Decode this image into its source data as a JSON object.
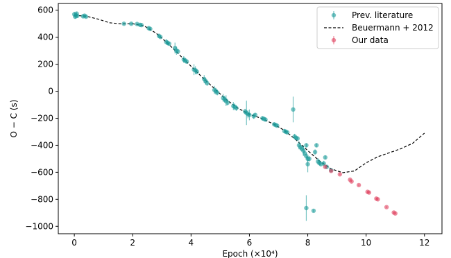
{
  "chart_data": {
    "type": "scatter",
    "xlabel": "Epoch (×10⁴)",
    "ylabel": "O − C (s)",
    "xlim": [
      -0.55,
      12.6
    ],
    "ylim": [
      -1055,
      650
    ],
    "x_ticks": [
      0,
      2,
      4,
      6,
      8,
      10,
      12
    ],
    "x_tick_labels": [
      "0",
      "2",
      "4",
      "6",
      "8",
      "10",
      "12"
    ],
    "y_ticks": [
      600,
      400,
      200,
      0,
      -200,
      -400,
      -600,
      -800,
      -1000
    ],
    "y_tick_labels": [
      "600",
      "400",
      "200",
      "0",
      "−200",
      "−400",
      "−600",
      "−800",
      "−1000"
    ],
    "grid": false,
    "legend_position": "top-right",
    "colors": {
      "literature": "#1a9b99",
      "ours": "#e0405e",
      "model": "#000000"
    },
    "series": [
      {
        "name": "Prev. literature",
        "kind": "points-with-errorbars",
        "points": [
          {
            "x": 0.0,
            "y": 570,
            "err": 18
          },
          {
            "x": 0.03,
            "y": 552,
            "err": 15
          },
          {
            "x": 0.05,
            "y": 562,
            "err": 12
          },
          {
            "x": 0.08,
            "y": 575,
            "err": 10
          },
          {
            "x": 0.1,
            "y": 558,
            "err": 14
          },
          {
            "x": 0.3,
            "y": 555,
            "err": 10
          },
          {
            "x": 0.35,
            "y": 560,
            "err": 8
          },
          {
            "x": 0.4,
            "y": 552,
            "err": 10
          },
          {
            "x": 1.7,
            "y": 500,
            "err": 8
          },
          {
            "x": 1.95,
            "y": 500,
            "err": 8
          },
          {
            "x": 2.15,
            "y": 498,
            "err": 8
          },
          {
            "x": 2.25,
            "y": 492,
            "err": 10
          },
          {
            "x": 2.3,
            "y": 490,
            "err": 10
          },
          {
            "x": 2.55,
            "y": 467,
            "err": 12
          },
          {
            "x": 2.6,
            "y": 462,
            "err": 10
          },
          {
            "x": 2.9,
            "y": 410,
            "err": 15
          },
          {
            "x": 2.95,
            "y": 402,
            "err": 10
          },
          {
            "x": 3.15,
            "y": 365,
            "err": 20
          },
          {
            "x": 3.2,
            "y": 358,
            "err": 18
          },
          {
            "x": 3.25,
            "y": 352,
            "err": 15
          },
          {
            "x": 3.45,
            "y": 320,
            "err": 40
          },
          {
            "x": 3.5,
            "y": 300,
            "err": 30
          },
          {
            "x": 3.55,
            "y": 295,
            "err": 20
          },
          {
            "x": 3.75,
            "y": 235,
            "err": 25
          },
          {
            "x": 3.8,
            "y": 228,
            "err": 20
          },
          {
            "x": 3.85,
            "y": 220,
            "err": 15
          },
          {
            "x": 4.1,
            "y": 160,
            "err": 40
          },
          {
            "x": 4.15,
            "y": 155,
            "err": 30
          },
          {
            "x": 4.2,
            "y": 145,
            "err": 20
          },
          {
            "x": 4.45,
            "y": 90,
            "err": 30
          },
          {
            "x": 4.5,
            "y": 75,
            "err": 25
          },
          {
            "x": 4.55,
            "y": 60,
            "err": 20
          },
          {
            "x": 4.8,
            "y": 10,
            "err": 30
          },
          {
            "x": 4.85,
            "y": 0,
            "err": 25
          },
          {
            "x": 4.9,
            "y": -10,
            "err": 20
          },
          {
            "x": 5.1,
            "y": -50,
            "err": 30
          },
          {
            "x": 5.15,
            "y": -60,
            "err": 25
          },
          {
            "x": 5.2,
            "y": -70,
            "err": 40
          },
          {
            "x": 5.25,
            "y": -85,
            "err": 20
          },
          {
            "x": 5.45,
            "y": -110,
            "err": 30
          },
          {
            "x": 5.5,
            "y": -115,
            "err": 25
          },
          {
            "x": 5.55,
            "y": -125,
            "err": 20
          },
          {
            "x": 5.85,
            "y": -150,
            "err": 20
          },
          {
            "x": 5.9,
            "y": -160,
            "err": 90
          },
          {
            "x": 5.95,
            "y": -170,
            "err": 30
          },
          {
            "x": 6.0,
            "y": -175,
            "err": 40
          },
          {
            "x": 6.15,
            "y": -185,
            "err": 20
          },
          {
            "x": 6.2,
            "y": -175,
            "err": 15
          },
          {
            "x": 6.45,
            "y": -200,
            "err": 15
          },
          {
            "x": 6.5,
            "y": -205,
            "err": 12
          },
          {
            "x": 6.55,
            "y": -210,
            "err": 10
          },
          {
            "x": 6.85,
            "y": -245,
            "err": 15
          },
          {
            "x": 6.9,
            "y": -250,
            "err": 12
          },
          {
            "x": 6.95,
            "y": -255,
            "err": 10
          },
          {
            "x": 7.2,
            "y": -295,
            "err": 15
          },
          {
            "x": 7.25,
            "y": -300,
            "err": 12
          },
          {
            "x": 7.3,
            "y": -305,
            "err": 10
          },
          {
            "x": 7.55,
            "y": -335,
            "err": 20
          },
          {
            "x": 7.6,
            "y": -345,
            "err": 15
          },
          {
            "x": 7.65,
            "y": -350,
            "err": 12
          },
          {
            "x": 7.5,
            "y": -135,
            "err": 95
          },
          {
            "x": 7.7,
            "y": -400,
            "err": 30
          },
          {
            "x": 7.75,
            "y": -415,
            "err": 25
          },
          {
            "x": 7.8,
            "y": -425,
            "err": 20
          },
          {
            "x": 7.85,
            "y": -440,
            "err": 40
          },
          {
            "x": 7.9,
            "y": -460,
            "err": 30
          },
          {
            "x": 7.95,
            "y": -480,
            "err": 25
          },
          {
            "x": 8.0,
            "y": -500,
            "err": 20
          },
          {
            "x": 7.95,
            "y": -400,
            "err": 15
          },
          {
            "x": 8.0,
            "y": -540,
            "err": 60
          },
          {
            "x": 8.05,
            "y": -500,
            "err": 20
          },
          {
            "x": 7.95,
            "y": -865,
            "err": 95
          },
          {
            "x": 8.2,
            "y": -885,
            "err": 10
          },
          {
            "x": 8.25,
            "y": -450,
            "err": 20
          },
          {
            "x": 8.3,
            "y": -400,
            "err": 15
          },
          {
            "x": 8.35,
            "y": -520,
            "err": 25
          },
          {
            "x": 8.4,
            "y": -530,
            "err": 20
          },
          {
            "x": 8.45,
            "y": -540,
            "err": 15
          },
          {
            "x": 8.55,
            "y": -535,
            "err": 20
          },
          {
            "x": 8.6,
            "y": -490,
            "err": 15
          },
          {
            "x": 8.65,
            "y": -560,
            "err": 12
          },
          {
            "x": 8.8,
            "y": -585,
            "err": 10
          }
        ]
      },
      {
        "name": "Beuermann + 2012",
        "kind": "dashed-line",
        "points": [
          {
            "x": 0.0,
            "y": 562
          },
          {
            "x": 0.4,
            "y": 556
          },
          {
            "x": 0.8,
            "y": 535
          },
          {
            "x": 1.2,
            "y": 507
          },
          {
            "x": 1.6,
            "y": 499
          },
          {
            "x": 2.0,
            "y": 500
          },
          {
            "x": 2.4,
            "y": 483
          },
          {
            "x": 2.8,
            "y": 430
          },
          {
            "x": 3.2,
            "y": 355
          },
          {
            "x": 3.6,
            "y": 270
          },
          {
            "x": 4.0,
            "y": 185
          },
          {
            "x": 4.4,
            "y": 100
          },
          {
            "x": 4.8,
            "y": 20
          },
          {
            "x": 5.2,
            "y": -60
          },
          {
            "x": 5.6,
            "y": -125
          },
          {
            "x": 6.0,
            "y": -170
          },
          {
            "x": 6.4,
            "y": -200
          },
          {
            "x": 6.8,
            "y": -240
          },
          {
            "x": 7.2,
            "y": -290
          },
          {
            "x": 7.6,
            "y": -360
          },
          {
            "x": 8.0,
            "y": -440
          },
          {
            "x": 8.4,
            "y": -515
          },
          {
            "x": 8.8,
            "y": -575
          },
          {
            "x": 9.2,
            "y": -603
          },
          {
            "x": 9.6,
            "y": -590
          },
          {
            "x": 10.0,
            "y": -530
          },
          {
            "x": 10.4,
            "y": -485
          },
          {
            "x": 10.8,
            "y": -455
          },
          {
            "x": 11.2,
            "y": -425
          },
          {
            "x": 11.6,
            "y": -385
          },
          {
            "x": 12.0,
            "y": -310
          }
        ]
      },
      {
        "name": "Our data",
        "kind": "points-with-errorbars",
        "points": [
          {
            "x": 8.6,
            "y": -560,
            "err": 6
          },
          {
            "x": 8.8,
            "y": -590,
            "err": 6
          },
          {
            "x": 9.1,
            "y": -615,
            "err": 6
          },
          {
            "x": 9.45,
            "y": -655,
            "err": 6
          },
          {
            "x": 9.5,
            "y": -668,
            "err": 6
          },
          {
            "x": 9.75,
            "y": -695,
            "err": 6
          },
          {
            "x": 10.05,
            "y": -745,
            "err": 6
          },
          {
            "x": 10.1,
            "y": -750,
            "err": 6
          },
          {
            "x": 10.35,
            "y": -795,
            "err": 6
          },
          {
            "x": 10.4,
            "y": -800,
            "err": 6
          },
          {
            "x": 10.7,
            "y": -858,
            "err": 6
          },
          {
            "x": 10.95,
            "y": -898,
            "err": 6
          },
          {
            "x": 11.0,
            "y": -905,
            "err": 6
          }
        ]
      }
    ]
  }
}
